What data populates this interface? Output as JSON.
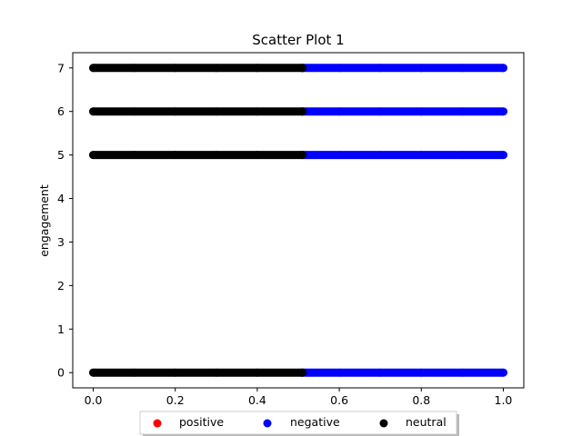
{
  "chart_data": {
    "type": "scatter",
    "title": "Scatter Plot 1",
    "xlabel": "",
    "ylabel": "engagement",
    "xlim": [
      -0.05,
      1.05
    ],
    "ylim": [
      -0.35,
      7.35
    ],
    "xticks": [
      0.0,
      0.2,
      0.4,
      0.6,
      0.8,
      1.0
    ],
    "xtick_labels": [
      "0.0",
      "0.2",
      "0.4",
      "0.6",
      "0.8",
      "1.0"
    ],
    "yticks": [
      0,
      1,
      2,
      3,
      4,
      5,
      6,
      7
    ],
    "ytick_labels": [
      "0",
      "1",
      "2",
      "3",
      "4",
      "5",
      "6",
      "7"
    ],
    "grid": false,
    "legend_position": "bottom-center",
    "series": [
      {
        "name": "positive",
        "color": "#ff0000",
        "points": []
      },
      {
        "name": "negative",
        "color": "#0000ff",
        "points": [
          [
            0.51,
            7
          ],
          [
            0.6,
            7
          ],
          [
            0.7,
            7
          ],
          [
            0.8,
            7
          ],
          [
            0.9,
            7
          ],
          [
            1.0,
            7
          ],
          [
            0.51,
            6
          ],
          [
            0.6,
            6
          ],
          [
            0.7,
            6
          ],
          [
            0.8,
            6
          ],
          [
            0.9,
            6
          ],
          [
            1.0,
            6
          ],
          [
            0.51,
            5
          ],
          [
            0.6,
            5
          ],
          [
            0.7,
            5
          ],
          [
            0.8,
            5
          ],
          [
            0.9,
            5
          ],
          [
            1.0,
            5
          ],
          [
            0.51,
            0
          ],
          [
            0.6,
            0
          ],
          [
            0.7,
            0
          ],
          [
            0.8,
            0
          ],
          [
            0.9,
            0
          ],
          [
            1.0,
            0
          ]
        ]
      },
      {
        "name": "neutral",
        "color": "#000000",
        "points": [
          [
            0.0,
            7
          ],
          [
            0.1,
            7
          ],
          [
            0.2,
            7
          ],
          [
            0.3,
            7
          ],
          [
            0.4,
            7
          ],
          [
            0.51,
            7
          ],
          [
            0.0,
            6
          ],
          [
            0.1,
            6
          ],
          [
            0.2,
            6
          ],
          [
            0.3,
            6
          ],
          [
            0.4,
            6
          ],
          [
            0.51,
            6
          ],
          [
            0.0,
            5
          ],
          [
            0.1,
            5
          ],
          [
            0.2,
            5
          ],
          [
            0.3,
            5
          ],
          [
            0.4,
            5
          ],
          [
            0.51,
            5
          ],
          [
            0.0,
            0
          ],
          [
            0.1,
            0
          ],
          [
            0.2,
            0
          ],
          [
            0.3,
            0
          ],
          [
            0.4,
            0
          ],
          [
            0.51,
            0
          ]
        ]
      }
    ]
  }
}
